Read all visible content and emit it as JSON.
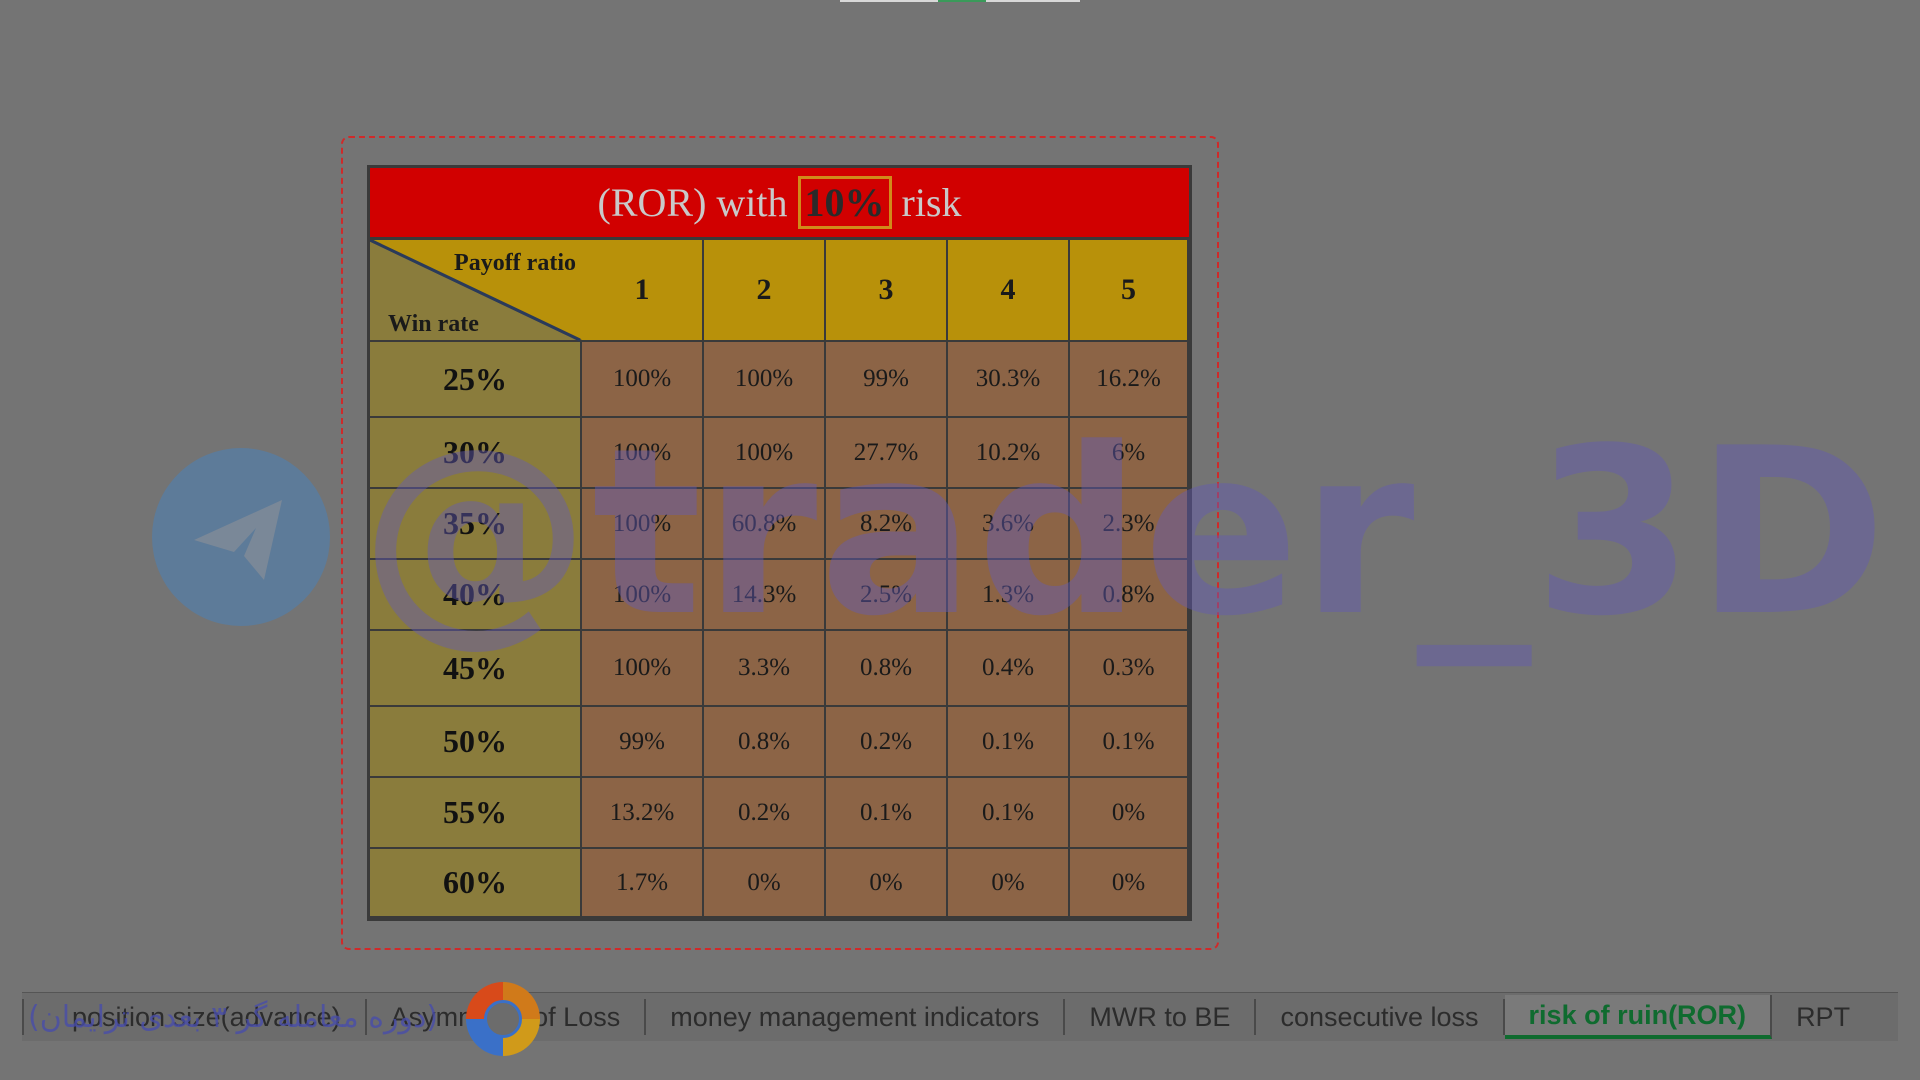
{
  "table": {
    "title_prefix": "(ROR) with",
    "title_risk": "10%",
    "title_suffix": "risk",
    "corner_top": "Payoff ratio",
    "corner_bottom": "Win rate",
    "columns": [
      "1",
      "2",
      "3",
      "4",
      "5"
    ],
    "rows": [
      {
        "win_rate": "25%",
        "values": [
          "100%",
          "100%",
          "99%",
          "30.3%",
          "16.2%"
        ]
      },
      {
        "win_rate": "30%",
        "values": [
          "100%",
          "100%",
          "27.7%",
          "10.2%",
          "6%"
        ]
      },
      {
        "win_rate": "35%",
        "values": [
          "100%",
          "60.8%",
          "8.2%",
          "3.6%",
          "2.3%"
        ]
      },
      {
        "win_rate": "40%",
        "values": [
          "100%",
          "14.3%",
          "2.5%",
          "1.3%",
          "0.8%"
        ]
      },
      {
        "win_rate": "45%",
        "values": [
          "100%",
          "3.3%",
          "0.8%",
          "0.4%",
          "0.3%"
        ]
      },
      {
        "win_rate": "50%",
        "values": [
          "99%",
          "0.8%",
          "0.2%",
          "0.1%",
          "0.1%"
        ]
      },
      {
        "win_rate": "55%",
        "values": [
          "13.2%",
          "0.2%",
          "0.1%",
          "0.1%",
          "0%"
        ]
      },
      {
        "win_rate": "60%",
        "values": [
          "1.7%",
          "0%",
          "0%",
          "0%",
          "0%"
        ]
      }
    ]
  },
  "watermark": {
    "handle": "@trader_3D",
    "icon": "telegram-icon",
    "caption": "(دوره معامله گر ۳ بعدی ترایمان)"
  },
  "sheet_tabs": {
    "items": [
      {
        "label": "position size(advance)",
        "active": false
      },
      {
        "label": "Asymmetry of Loss",
        "active": false
      },
      {
        "label": "money management indicators",
        "active": false
      },
      {
        "label": "MWR to BE",
        "active": false
      },
      {
        "label": "consecutive loss",
        "active": false
      },
      {
        "label": "risk of ruin(ROR)",
        "active": true
      },
      {
        "label": "RPT",
        "active": false
      }
    ]
  },
  "colors": {
    "title_bar": "#d10000",
    "header": "#b8910a",
    "row_header": "#8a7c3c",
    "value_cell": "#8c6446",
    "active_tab": "#0f6b2f"
  }
}
